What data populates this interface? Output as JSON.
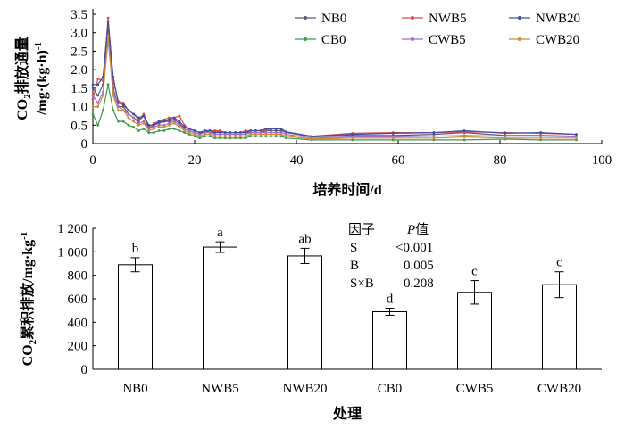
{
  "chart_data": [
    {
      "type": "line",
      "xlabel": "培养时间/d",
      "ylabel_line1": "CO",
      "ylabel_sub": "2",
      "ylabel_rest": "排放通量",
      "ylabel_line2": "/mg·(kg·h)",
      "ylabel_sup": "-1",
      "xlim": [
        0,
        100
      ],
      "ylim": [
        0,
        3.5
      ],
      "xticks": [
        "0",
        "20",
        "40",
        "60",
        "80",
        "100"
      ],
      "yticks": [
        "0",
        "0.5",
        "1.0",
        "1.5",
        "2.0",
        "2.5",
        "3.0",
        "3.5"
      ],
      "x": [
        0,
        1,
        2,
        3,
        4,
        5,
        6,
        7,
        8,
        9,
        10,
        11,
        12,
        13,
        14,
        15,
        16,
        17,
        18,
        19,
        20,
        21,
        22,
        23,
        24,
        25,
        26,
        27,
        28,
        29,
        30,
        31,
        32,
        33,
        34,
        35,
        36,
        37,
        38,
        43,
        51,
        59,
        67,
        73,
        81,
        88,
        95
      ],
      "legend_position": "top-right",
      "series": [
        {
          "name": "NB0",
          "color": "#5a5a78",
          "values": [
            1.5,
            1.3,
            1.6,
            3.2,
            1.5,
            1.0,
            1.0,
            0.8,
            0.7,
            0.6,
            0.75,
            0.4,
            0.5,
            0.55,
            0.6,
            0.6,
            0.65,
            0.55,
            0.4,
            0.35,
            0.3,
            0.25,
            0.35,
            0.3,
            0.3,
            0.35,
            0.3,
            0.3,
            0.3,
            0.3,
            0.3,
            0.3,
            0.3,
            0.3,
            0.35,
            0.35,
            0.35,
            0.35,
            0.3,
            0.18,
            0.22,
            0.22,
            0.25,
            0.3,
            0.22,
            0.22,
            0.2
          ]
        },
        {
          "name": "NWB5",
          "color": "#d94b4b",
          "values": [
            1.2,
            1.75,
            1.7,
            3.4,
            1.7,
            1.15,
            1.1,
            0.9,
            0.8,
            0.65,
            0.8,
            0.45,
            0.55,
            0.6,
            0.65,
            0.7,
            0.7,
            0.75,
            0.5,
            0.4,
            0.35,
            0.3,
            0.35,
            0.35,
            0.35,
            0.35,
            0.3,
            0.3,
            0.3,
            0.3,
            0.35,
            0.35,
            0.35,
            0.35,
            0.35,
            0.4,
            0.4,
            0.4,
            0.3,
            0.2,
            0.28,
            0.3,
            0.3,
            0.32,
            0.3,
            0.28,
            0.25
          ]
        },
        {
          "name": "NWB20",
          "color": "#3f4fa0",
          "values": [
            1.6,
            1.6,
            1.8,
            3.3,
            1.8,
            1.1,
            1.05,
            0.9,
            0.8,
            0.7,
            0.75,
            0.5,
            0.5,
            0.6,
            0.6,
            0.65,
            0.7,
            0.6,
            0.45,
            0.4,
            0.35,
            0.3,
            0.35,
            0.35,
            0.3,
            0.3,
            0.3,
            0.3,
            0.3,
            0.3,
            0.3,
            0.35,
            0.35,
            0.35,
            0.4,
            0.4,
            0.4,
            0.4,
            0.32,
            0.2,
            0.25,
            0.28,
            0.3,
            0.35,
            0.28,
            0.3,
            0.25
          ]
        },
        {
          "name": "CB0",
          "color": "#3f9a4c",
          "values": [
            0.8,
            0.5,
            0.9,
            1.6,
            0.9,
            0.6,
            0.6,
            0.5,
            0.45,
            0.35,
            0.4,
            0.3,
            0.3,
            0.35,
            0.35,
            0.4,
            0.4,
            0.35,
            0.3,
            0.25,
            0.2,
            0.15,
            0.2,
            0.2,
            0.15,
            0.15,
            0.15,
            0.15,
            0.15,
            0.15,
            0.15,
            0.2,
            0.2,
            0.2,
            0.2,
            0.2,
            0.2,
            0.2,
            0.15,
            0.1,
            0.1,
            0.1,
            0.1,
            0.1,
            0.12,
            0.1,
            0.1
          ]
        },
        {
          "name": "CWB5",
          "color": "#a070c8",
          "values": [
            1.3,
            1.1,
            1.4,
            2.8,
            1.4,
            1.0,
            0.9,
            0.8,
            0.7,
            0.55,
            0.6,
            0.4,
            0.45,
            0.5,
            0.5,
            0.55,
            0.6,
            0.5,
            0.4,
            0.35,
            0.3,
            0.25,
            0.3,
            0.3,
            0.25,
            0.25,
            0.25,
            0.25,
            0.25,
            0.25,
            0.25,
            0.3,
            0.3,
            0.3,
            0.3,
            0.3,
            0.3,
            0.3,
            0.25,
            0.15,
            0.18,
            0.18,
            0.2,
            0.22,
            0.2,
            0.2,
            0.18
          ]
        },
        {
          "name": "CWB20",
          "color": "#d08a3a",
          "values": [
            1.0,
            1.0,
            1.3,
            2.9,
            1.3,
            0.9,
            0.9,
            0.7,
            0.6,
            0.5,
            0.55,
            0.35,
            0.4,
            0.45,
            0.45,
            0.5,
            0.55,
            0.45,
            0.35,
            0.3,
            0.25,
            0.2,
            0.25,
            0.25,
            0.2,
            0.2,
            0.2,
            0.2,
            0.2,
            0.2,
            0.2,
            0.25,
            0.25,
            0.25,
            0.25,
            0.25,
            0.25,
            0.25,
            0.2,
            0.12,
            0.15,
            0.15,
            0.15,
            0.18,
            0.15,
            0.15,
            0.15
          ]
        }
      ]
    },
    {
      "type": "bar",
      "xlabel": "处理",
      "ylabel_pre": "CO",
      "ylabel_sub": "2",
      "ylabel_rest": "累积排放/mg·kg",
      "ylabel_sup": "-1",
      "categories": [
        "NB0",
        "NWB5",
        "NWB20",
        "CB0",
        "CWB5",
        "CWB20"
      ],
      "values": [
        890,
        1040,
        965,
        490,
        655,
        720
      ],
      "errors": [
        60,
        45,
        65,
        30,
        100,
        110
      ],
      "significance_letters": [
        "b",
        "a",
        "ab",
        "d",
        "c",
        "c"
      ],
      "ylim": [
        0,
        1200
      ],
      "yticks": [
        "0",
        "200",
        "400",
        "600",
        "800",
        "1 000",
        "1 200"
      ],
      "bar_color": "#ffffff",
      "stats_table": {
        "header_factor": "因子",
        "header_p_italic": "P",
        "header_p_rest": "值",
        "rows": [
          {
            "factor": "S",
            "p": "<0.001"
          },
          {
            "factor": "B",
            "p": "0.005"
          },
          {
            "factor": "S×B",
            "p": "0.208"
          }
        ]
      }
    }
  ]
}
